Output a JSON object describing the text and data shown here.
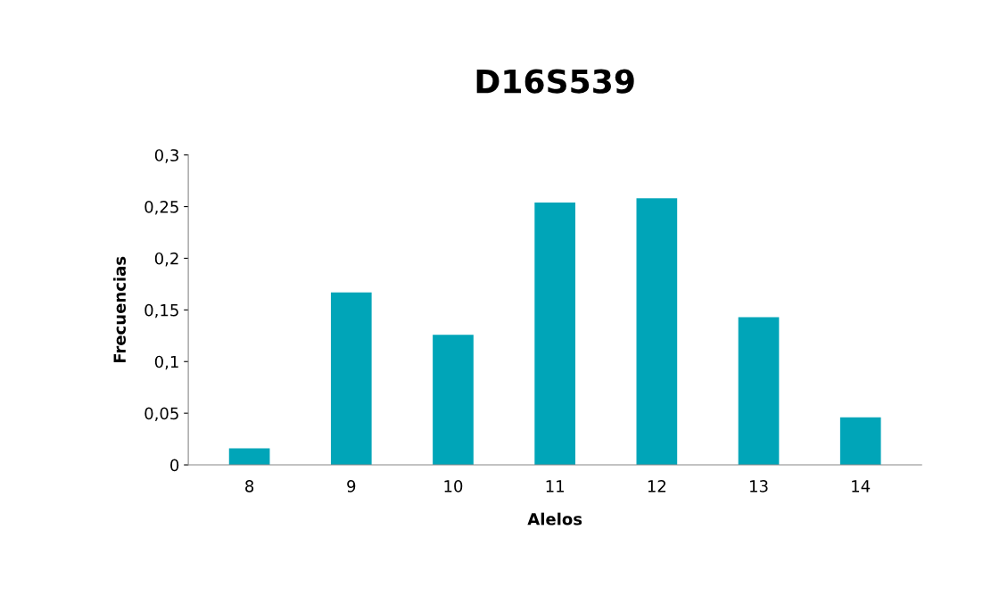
{
  "chart_data": {
    "type": "bar",
    "title": "D16S539",
    "xlabel": "Alelos",
    "ylabel": "Frecuencias",
    "categories": [
      "8",
      "9",
      "10",
      "11",
      "12",
      "13",
      "14"
    ],
    "values": [
      0.016,
      0.167,
      0.126,
      0.254,
      0.258,
      0.143,
      0.046
    ],
    "color": "#00a5b8",
    "ylim": [
      0,
      0.3
    ],
    "yticks": [
      0,
      {
        "value": 0.05,
        "label": "0,05"
      },
      {
        "value": 0.1,
        "label": "0,1"
      },
      {
        "value": 0.15,
        "label": "0,15"
      },
      {
        "value": 0.2,
        "label": "0,2"
      },
      {
        "value": 0.25,
        "label": "0,25"
      },
      {
        "value": 0.3,
        "label": "0,3"
      }
    ],
    "grid": false,
    "legend": false
  }
}
